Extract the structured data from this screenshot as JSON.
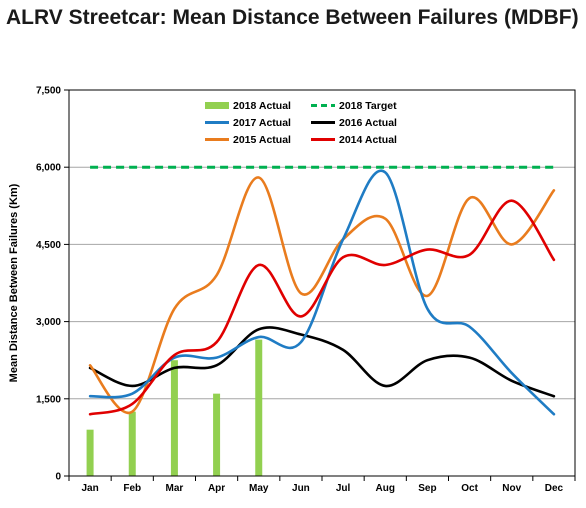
{
  "chart_data": {
    "type": "line",
    "title": "ALRV Streetcar: Mean Distance Between Failures (MDBF)",
    "xlabel": "",
    "ylabel": "Mean Distance Between Failures (Km)",
    "categories": [
      "Jan",
      "Feb",
      "Mar",
      "Apr",
      "May",
      "Jun",
      "Jul",
      "Aug",
      "Sep",
      "Oct",
      "Nov",
      "Dec"
    ],
    "ylim": [
      0,
      7500
    ],
    "yticks": [
      0,
      1500,
      3000,
      4500,
      6000,
      7500
    ],
    "ytick_labels": [
      "0",
      "1,500",
      "3,000",
      "4,500",
      "6,000",
      "7,500"
    ],
    "grid": "horizontal",
    "legend_position": "top-center",
    "bars": {
      "name": "2018 Actual",
      "color": "#92D050",
      "values": [
        900,
        1250,
        2250,
        1600,
        2650,
        null,
        null,
        null,
        null,
        null,
        null,
        null
      ]
    },
    "series": [
      {
        "name": "2018 Target",
        "color": "#00B050",
        "style": "dashed",
        "values": [
          6000,
          6000,
          6000,
          6000,
          6000,
          6000,
          6000,
          6000,
          6000,
          6000,
          6000,
          6000
        ]
      },
      {
        "name": "2017 Actual",
        "color": "#1F7CC4",
        "style": "solid",
        "values": [
          1550,
          1600,
          2300,
          2300,
          2700,
          2600,
          4600,
          5900,
          3250,
          2900,
          2000,
          1200
        ]
      },
      {
        "name": "2016 Actual",
        "color": "#000000",
        "style": "solid",
        "values": [
          2100,
          1750,
          2100,
          2150,
          2850,
          2750,
          2450,
          1750,
          2250,
          2300,
          1850,
          1550
        ]
      },
      {
        "name": "2015 Actual",
        "color": "#E97C1E",
        "style": "solid",
        "values": [
          2150,
          1250,
          3250,
          3900,
          5800,
          3550,
          4600,
          5000,
          3500,
          5400,
          4500,
          5550
        ]
      },
      {
        "name": "2014 Actual",
        "color": "#E00000",
        "style": "solid",
        "values": [
          1200,
          1400,
          2350,
          2600,
          4100,
          3100,
          4250,
          4100,
          4400,
          4300,
          5350,
          4200
        ]
      }
    ]
  }
}
